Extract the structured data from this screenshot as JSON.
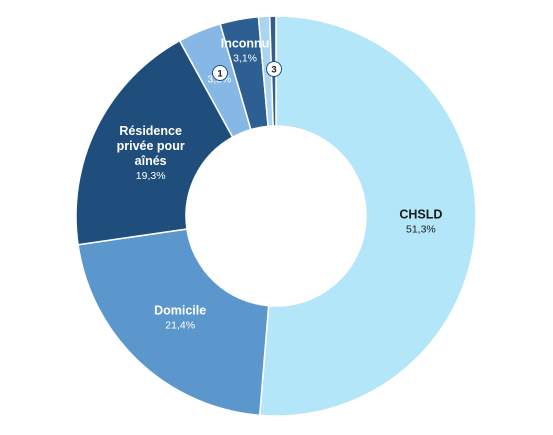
{
  "chart_data": {
    "type": "pie",
    "style": "donut",
    "slices": [
      {
        "label": "CHSLD",
        "value": 51.3,
        "value_label": "51,3%",
        "color": "#b3e6f9",
        "text_color": "#1a1a1a"
      },
      {
        "label": "Domicile",
        "value": 21.4,
        "value_label": "21,4%",
        "color": "#5b97cc",
        "text_color": "#ffffff"
      },
      {
        "label": "Résidence privée pour aînés",
        "label_lines": [
          "Résidence",
          "privée pour",
          "aînés"
        ],
        "value": 19.3,
        "value_label": "19,3%",
        "color": "#1f4e7d",
        "text_color": "#ffffff"
      },
      {
        "label": "",
        "badge": "1",
        "value": 3.5,
        "value_label": "3,5%",
        "color": "#86b8e6",
        "text_color": "#ffffff"
      },
      {
        "label": "Inconnu",
        "value": 3.1,
        "value_label": "3,1%",
        "color": "#2d5f92",
        "text_color": "#ffffff"
      },
      {
        "label": "",
        "value": 0.9,
        "value_label": "",
        "color": "#a9d4f2",
        "text_color": "#ffffff"
      },
      {
        "label": "",
        "badge": "3",
        "value": 0.5,
        "value_label": "",
        "color": "#355f8a",
        "text_color": "#ffffff"
      }
    ]
  }
}
